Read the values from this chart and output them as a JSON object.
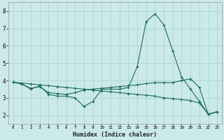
{
  "xlabel": "Humidex (Indice chaleur)",
  "ylabel": "",
  "background_color": "#cce9e9",
  "grid_color": "#aad4d4",
  "line_color": "#1a6b5e",
  "xlim": [
    -0.5,
    23.5
  ],
  "ylim": [
    1.5,
    8.5
  ],
  "xticks": [
    0,
    1,
    2,
    3,
    4,
    5,
    6,
    7,
    8,
    9,
    10,
    11,
    12,
    13,
    14,
    15,
    16,
    17,
    18,
    19,
    20,
    21,
    22,
    23
  ],
  "yticks": [
    2,
    3,
    4,
    5,
    6,
    7,
    8
  ],
  "line1_x": [
    0,
    1,
    2,
    3,
    4,
    5,
    6,
    7,
    8,
    9,
    10,
    11,
    12,
    13,
    14,
    15,
    16,
    17,
    18,
    19,
    20,
    21,
    22,
    23
  ],
  "line1_y": [
    3.9,
    3.8,
    3.5,
    3.7,
    3.2,
    3.1,
    3.1,
    3.0,
    2.5,
    2.8,
    3.5,
    3.5,
    3.5,
    3.6,
    4.8,
    7.4,
    7.85,
    7.2,
    5.7,
    4.2,
    3.5,
    2.8,
    2.05,
    2.2
  ],
  "line2_x": [
    0,
    1,
    2,
    3,
    4,
    5,
    6,
    7,
    8,
    9,
    10,
    11,
    12,
    13,
    14,
    15,
    16,
    17,
    18,
    19,
    20,
    21,
    22,
    23
  ],
  "line2_y": [
    3.9,
    3.8,
    3.55,
    3.65,
    3.3,
    3.25,
    3.2,
    3.3,
    3.45,
    3.5,
    3.55,
    3.6,
    3.65,
    3.7,
    3.75,
    3.82,
    3.88,
    3.88,
    3.88,
    4.0,
    4.1,
    3.6,
    2.05,
    2.2
  ],
  "line3_x": [
    0,
    1,
    2,
    3,
    4,
    5,
    6,
    7,
    8,
    9,
    10,
    11,
    12,
    13,
    14,
    15,
    16,
    17,
    18,
    19,
    20,
    21,
    22,
    23
  ],
  "line3_y": [
    3.9,
    3.85,
    3.8,
    3.75,
    3.7,
    3.65,
    3.6,
    3.55,
    3.5,
    3.45,
    3.4,
    3.35,
    3.3,
    3.25,
    3.2,
    3.15,
    3.1,
    3.0,
    2.95,
    2.9,
    2.85,
    2.7,
    2.05,
    2.2
  ]
}
